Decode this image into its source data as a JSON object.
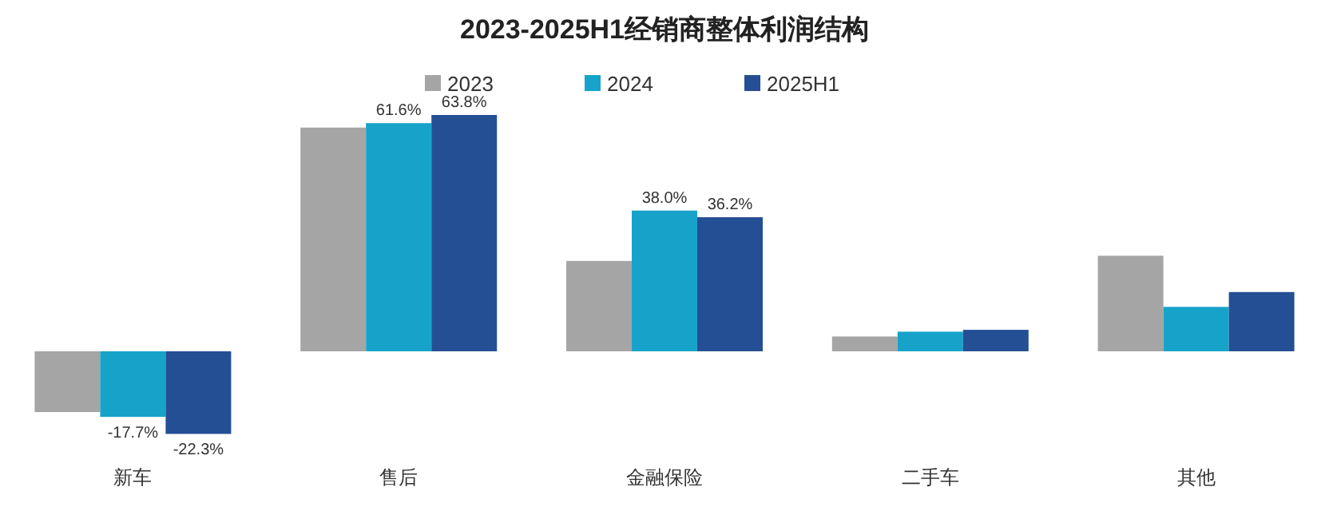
{
  "chart_data": {
    "type": "bar",
    "title": "2023-2025H1经销商整体利润结构",
    "categories": [
      "新车",
      "售后",
      "金融保险",
      "二手车",
      "其他"
    ],
    "series": [
      {
        "name": "2023",
        "color": "#a5a5a5",
        "values": [
          -16.4,
          60.4,
          24.4,
          4.0,
          25.8
        ],
        "value_labels": [
          null,
          null,
          null,
          null,
          null
        ]
      },
      {
        "name": "2024",
        "color": "#17a3c9",
        "values": [
          -17.7,
          61.6,
          38.0,
          5.3,
          12.0
        ],
        "value_labels": [
          "-17.7%",
          "61.6%",
          "38.0%",
          null,
          null
        ]
      },
      {
        "name": "2025H1",
        "color": "#254f94",
        "values": [
          -22.3,
          63.8,
          36.2,
          5.8,
          16.0
        ],
        "value_labels": [
          "-22.3%",
          "63.8%",
          "36.2%",
          null,
          null
        ]
      }
    ],
    "legend": "top",
    "grid": false
  }
}
